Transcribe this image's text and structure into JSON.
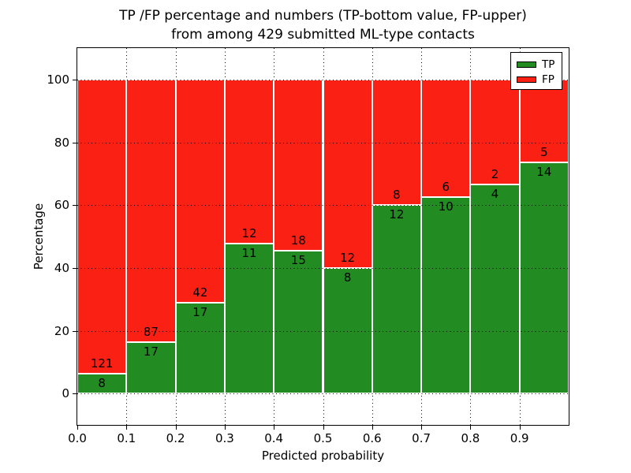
{
  "chart_data": {
    "type": "bar",
    "stacked": true,
    "title_line1": "TP /FP percentage and numbers (TP-bottom value, FP-upper)",
    "title_line2": "from among 429 submitted ML-type contacts",
    "xlabel": "Predicted probability",
    "ylabel": "Percentage",
    "total_contacts": 429,
    "bin_edges": [
      0.0,
      0.1,
      0.2,
      0.3,
      0.4,
      0.5,
      0.6,
      0.7,
      0.8,
      0.9,
      1.0
    ],
    "xticklabels": [
      "0.0",
      "0.1",
      "0.2",
      "0.3",
      "0.4",
      "0.5",
      "0.6",
      "0.7",
      "0.8",
      "0.9"
    ],
    "yticks": [
      0,
      20,
      40,
      60,
      80,
      100
    ],
    "xlim": [
      0,
      1
    ],
    "ylim": [
      -10,
      110
    ],
    "grid": {
      "visible": true,
      "style": "dotted",
      "color": "#000000"
    },
    "bar_edge_color": "#ffffff",
    "series": [
      {
        "name": "TP",
        "color": "#228b22",
        "counts": [
          8,
          17,
          17,
          11,
          15,
          8,
          12,
          10,
          4,
          14
        ]
      },
      {
        "name": "FP",
        "color": "#fb2014",
        "counts": [
          121,
          87,
          42,
          12,
          18,
          12,
          8,
          6,
          2,
          5
        ]
      }
    ],
    "tp_percent": [
      6.2,
      16.3,
      28.8,
      47.8,
      45.5,
      40.0,
      60.0,
      62.5,
      66.7,
      73.7
    ],
    "legend": {
      "position": "upper right",
      "entries": [
        {
          "label": "TP",
          "color": "#228b22"
        },
        {
          "label": "FP",
          "color": "#fb2014"
        }
      ]
    }
  }
}
